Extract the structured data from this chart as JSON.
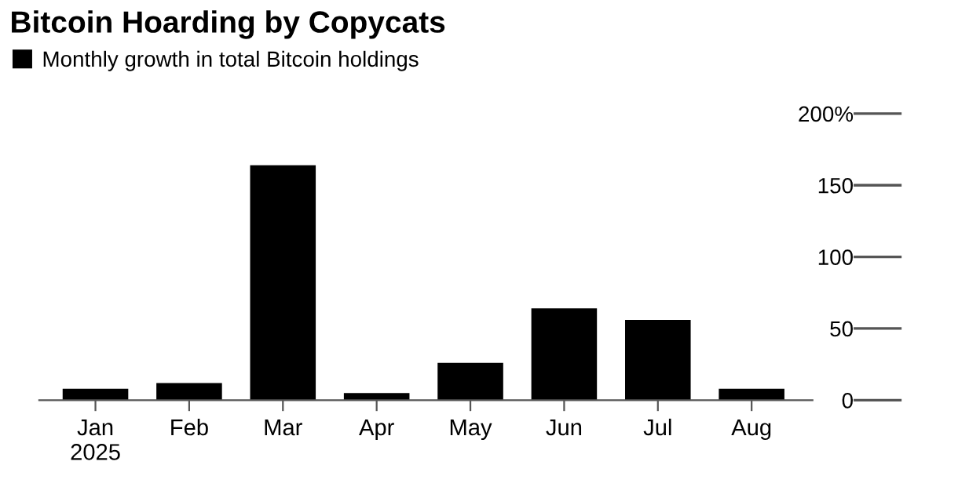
{
  "chart_data": {
    "type": "bar",
    "title": "Bitcoin Hoarding by Copycats",
    "categories": [
      "Jan\n2025",
      "Feb",
      "Mar",
      "Apr",
      "May",
      "Jun",
      "Jul",
      "Aug"
    ],
    "series": [
      {
        "name": "Monthly growth in total Bitcoin holdings",
        "color": "#000000",
        "values": [
          8,
          12,
          164,
          5,
          26,
          64,
          56,
          8
        ]
      }
    ],
    "ylim": [
      0,
      200
    ],
    "yticks": [
      0,
      50,
      100,
      150,
      {
        "value": 200,
        "label": "200%"
      }
    ],
    "legend": "top left",
    "grid": false
  }
}
